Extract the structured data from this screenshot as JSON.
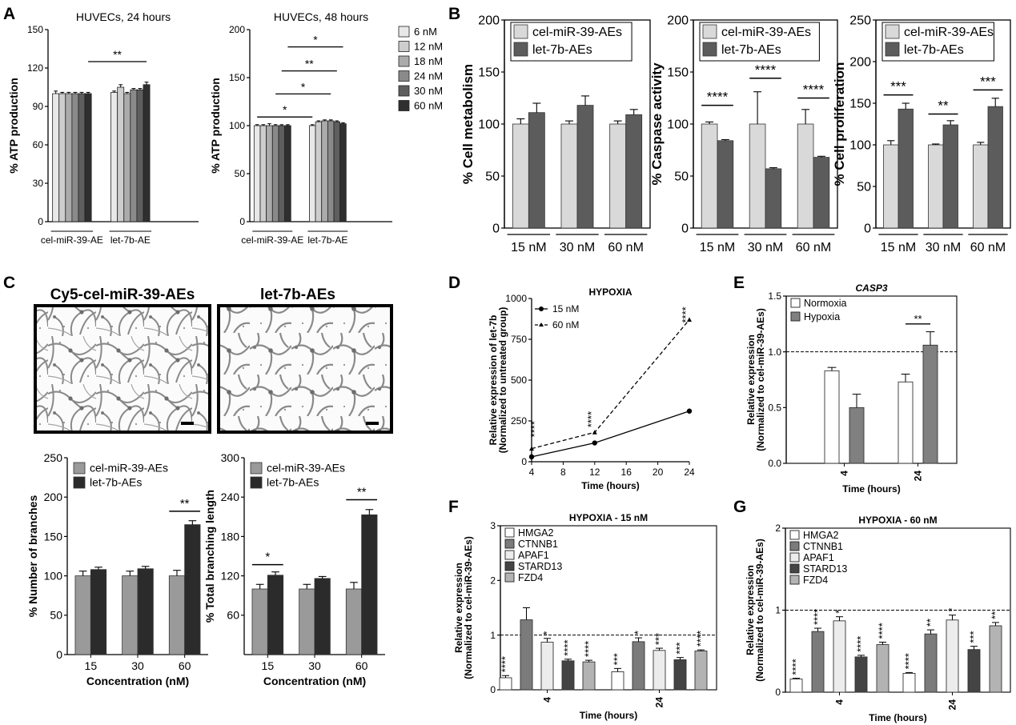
{
  "colors": {
    "grey6": [
      "#e8e8e8",
      "#cdcdcd",
      "#ababab",
      "#8a8a8a",
      "#5e5e5e",
      "#2f2f2f"
    ],
    "light": "#d9d9d9",
    "dark": "#5c5c5c",
    "black": "#2b2b2b",
    "midgrey": "#9a9a9a",
    "white": "#ffffff"
  },
  "panel_letters": [
    "A",
    "B",
    "C",
    "D",
    "E",
    "F",
    "G"
  ],
  "chart_data": [
    {
      "id": "A1",
      "type": "bar",
      "title": "HUVECs, 24 hours",
      "ylabel": "% ATP production",
      "ylim": [
        0,
        150
      ],
      "yticks": [
        0,
        30,
        60,
        90,
        120,
        150
      ],
      "groups": [
        "cel-miR-39-AE",
        "let-7b-AE"
      ],
      "series": [
        {
          "name": "6 nM",
          "values": [
            100,
            101
          ]
        },
        {
          "name": "12 nM",
          "values": [
            100,
            105
          ]
        },
        {
          "name": "18 nM",
          "values": [
            100,
            100
          ]
        },
        {
          "name": "24 nM",
          "values": [
            100,
            103
          ]
        },
        {
          "name": "30 nM",
          "values": [
            100,
            103
          ]
        },
        {
          "name": "60 nM",
          "values": [
            100,
            107
          ]
        }
      ],
      "errors": [
        [
          2,
          1
        ],
        [
          1,
          2
        ],
        [
          1,
          1
        ],
        [
          1,
          1
        ],
        [
          1,
          1
        ],
        [
          1,
          2
        ]
      ],
      "annotations": [
        {
          "text": "**",
          "y": 125,
          "from": [
            0,
            5
          ],
          "to": [
            1,
            5
          ]
        }
      ]
    },
    {
      "id": "A2",
      "type": "bar",
      "title": "HUVECs, 48 hours",
      "ylabel": "% ATP production",
      "ylim": [
        0,
        200
      ],
      "yticks": [
        0,
        50,
        100,
        150,
        200
      ],
      "groups": [
        "cel-miR-39-AE",
        "let-7b-AE"
      ],
      "series": [
        {
          "name": "6 nM",
          "values": [
            100,
            100
          ]
        },
        {
          "name": "12 nM",
          "values": [
            100,
            104
          ]
        },
        {
          "name": "18 nM",
          "values": [
            100,
            105
          ]
        },
        {
          "name": "24 nM",
          "values": [
            100,
            105
          ]
        },
        {
          "name": "30 nM",
          "values": [
            100,
            104
          ]
        },
        {
          "name": "60 nM",
          "values": [
            100,
            102
          ]
        }
      ],
      "errors": [
        [
          1,
          1
        ],
        [
          1,
          1
        ],
        [
          2,
          1
        ],
        [
          1,
          1
        ],
        [
          1,
          1
        ],
        [
          1,
          1
        ]
      ],
      "legend": [
        "6 nM",
        "12 nM",
        "18 nM",
        "24 nM",
        "30 nM",
        "60 nM"
      ],
      "annotations": [
        {
          "text": "*",
          "y": 182,
          "from": [
            0,
            5
          ],
          "to": [
            1,
            5
          ]
        },
        {
          "text": "**",
          "y": 157,
          "from": [
            0,
            4
          ],
          "to": [
            1,
            4
          ]
        },
        {
          "text": "*",
          "y": 133,
          "from": [
            0,
            3
          ],
          "to": [
            1,
            3
          ]
        },
        {
          "text": "*",
          "y": 109,
          "from": [
            0,
            0
          ],
          "to": [
            1,
            0
          ]
        }
      ]
    },
    {
      "id": "B1",
      "type": "bar",
      "ylabel": "% Cell metabolism",
      "ylim": [
        0,
        200
      ],
      "yticks": [
        0,
        50,
        100,
        150,
        200
      ],
      "categories": [
        "15 nM",
        "30 nM",
        "60 nM"
      ],
      "series": [
        {
          "name": "cel-miR-39-AEs",
          "values": [
            100,
            100,
            100
          ]
        },
        {
          "name": "let-7b-AEs",
          "values": [
            111,
            118,
            109
          ]
        }
      ],
      "errors": [
        [
          5,
          3,
          3
        ],
        [
          9,
          9,
          5
        ]
      ],
      "legend": [
        "cel-miR-39-AEs",
        "let-7b-AEs"
      ],
      "annotations": []
    },
    {
      "id": "B2",
      "type": "bar",
      "ylabel": "% Caspase activity",
      "ylim": [
        0,
        200
      ],
      "yticks": [
        0,
        50,
        100,
        150,
        200
      ],
      "categories": [
        "15 nM",
        "30 nM",
        "60 nM"
      ],
      "series": [
        {
          "name": "cel-miR-39-AEs",
          "values": [
            100,
            100,
            100
          ]
        },
        {
          "name": "let-7b-AEs",
          "values": [
            84,
            57,
            68
          ]
        }
      ],
      "errors": [
        [
          2,
          31,
          14
        ],
        [
          1,
          1,
          1
        ]
      ],
      "legend": [
        "cel-miR-39-AEs",
        "let-7b-AEs"
      ],
      "annotations": [
        {
          "text": "****",
          "y": 118,
          "cat": 0
        },
        {
          "text": "****",
          "y": 144,
          "cat": 1
        },
        {
          "text": "****",
          "y": 125,
          "cat": 2
        }
      ]
    },
    {
      "id": "B3",
      "type": "bar",
      "ylabel": "% Cell proliferation",
      "ylim": [
        0,
        250
      ],
      "yticks": [
        0,
        50,
        100,
        150,
        200,
        250
      ],
      "categories": [
        "15 nM",
        "30 nM",
        "60 nM"
      ],
      "series": [
        {
          "name": "cel-miR-39-AEs",
          "values": [
            100,
            100,
            100
          ]
        },
        {
          "name": "let-7b-AEs",
          "values": [
            143,
            124,
            146
          ]
        }
      ],
      "errors": [
        [
          5,
          1,
          3
        ],
        [
          7,
          5,
          10
        ]
      ],
      "legend": [
        "cel-miR-39-AEs",
        "let-7b-AEs"
      ],
      "annotations": [
        {
          "text": "***",
          "y": 160,
          "cat": 0
        },
        {
          "text": "**",
          "y": 137,
          "cat": 1
        },
        {
          "text": "***",
          "y": 166,
          "cat": 2
        }
      ]
    },
    {
      "id": "C1",
      "type": "bar",
      "ylabel": "% Number of branches",
      "xlabel": "Concentration (nM)",
      "ylim": [
        0,
        250
      ],
      "yticks": [
        0,
        50,
        100,
        150,
        200,
        250
      ],
      "categories": [
        "15",
        "30",
        "60"
      ],
      "series": [
        {
          "name": "cel-miR-39-AEs",
          "values": [
            100,
            100,
            100
          ]
        },
        {
          "name": "let-7b-AEs",
          "values": [
            108,
            109,
            165
          ]
        }
      ],
      "errors": [
        [
          6,
          6,
          7
        ],
        [
          3,
          3,
          5
        ]
      ],
      "legend": [
        "cel-miR-39-AEs",
        "let-7b-AEs"
      ],
      "annotations": [
        {
          "text": "**",
          "y": 182,
          "cat": 2
        }
      ]
    },
    {
      "id": "C2",
      "type": "bar",
      "ylabel": "% Total branching length",
      "xlabel": "Concentration (nM)",
      "ylim": [
        0,
        300
      ],
      "yticks": [
        60,
        120,
        180,
        240,
        300
      ],
      "categories": [
        "15",
        "30",
        "60"
      ],
      "series": [
        {
          "name": "cel-miR-39-AEs",
          "values": [
            100,
            100,
            100
          ]
        },
        {
          "name": "let-7b-AEs",
          "values": [
            121,
            116,
            213
          ]
        }
      ],
      "errors": [
        [
          7,
          7,
          10
        ],
        [
          5,
          3,
          8
        ]
      ],
      "legend": [
        "cel-miR-39-AEs",
        "let-7b-AEs"
      ],
      "annotations": [
        {
          "text": "*",
          "y": 137,
          "cat": 0
        },
        {
          "text": "**",
          "y": 236,
          "cat": 2
        }
      ]
    },
    {
      "id": "D",
      "type": "line",
      "title": "HYPOXIA",
      "xlabel": "Time (hours)",
      "ylabel": "Relative expression of let-7b",
      "ylabel2": "(Normalized to untreated group)",
      "xlim": [
        4,
        24
      ],
      "xticks": [
        4,
        8,
        12,
        16,
        20,
        24
      ],
      "ylim": [
        0,
        1000
      ],
      "yticks": [
        0,
        250,
        500,
        750,
        1000
      ],
      "series": [
        {
          "name": "15 nM",
          "x": [
            4,
            12,
            24
          ],
          "y": [
            30,
            115,
            310
          ]
        },
        {
          "name": "60 nM",
          "x": [
            4,
            12,
            24
          ],
          "y": [
            80,
            180,
            870
          ]
        }
      ],
      "annotations": [
        {
          "text": "****",
          "x": 4,
          "y": 200
        },
        {
          "text": "****",
          "x": 12,
          "y": 260
        },
        {
          "text": "****",
          "x": 24,
          "y": 900
        }
      ]
    },
    {
      "id": "E",
      "type": "bar",
      "title": "CASP3",
      "xlabel": "Time (hours)",
      "ylabel": "Relative expression",
      "ylabel2": "(Normalized to cel-miR-39-AEs)",
      "ylim": [
        0,
        1.5
      ],
      "yticks": [
        0.0,
        0.5,
        1.0,
        1.5
      ],
      "reference": 1.0,
      "categories": [
        "4",
        "24"
      ],
      "series": [
        {
          "name": "Normoxia",
          "values": [
            0.83,
            0.73
          ]
        },
        {
          "name": "Hypoxia",
          "values": [
            0.5,
            1.06
          ]
        }
      ],
      "errors": [
        [
          0.03,
          0.07
        ],
        [
          0.12,
          0.12
        ]
      ],
      "legend": [
        "Normoxia",
        "Hypoxia"
      ],
      "annotations": [
        {
          "text": "**",
          "y": 1.25,
          "cat": 1
        }
      ]
    },
    {
      "id": "F",
      "type": "bar",
      "title": "HYPOXIA - 15 nM",
      "xlabel": "Time (hours)",
      "ylabel": "Relative expression",
      "ylabel2": "(Normalized to cel-miR-39-AEs)",
      "ylim": [
        0,
        3
      ],
      "yticks": [
        0,
        1,
        2,
        3
      ],
      "reference": 1.0,
      "categories": [
        "4",
        "24"
      ],
      "series": [
        {
          "name": "HMGA2",
          "values": [
            0.22,
            0.33
          ]
        },
        {
          "name": "CTNNB1",
          "values": [
            1.28,
            0.88
          ]
        },
        {
          "name": "APAF1",
          "values": [
            0.87,
            0.72
          ]
        },
        {
          "name": "STARD13",
          "values": [
            0.53,
            0.55
          ]
        },
        {
          "name": "FZD4",
          "values": [
            0.51,
            0.71
          ]
        }
      ],
      "errors": [
        [
          0.04,
          0.06
        ],
        [
          0.22,
          0.07
        ],
        [
          0.07,
          0.04
        ],
        [
          0.03,
          0.04
        ],
        [
          0.03,
          0.02
        ]
      ],
      "legend": [
        "HMGA2",
        "CTNNB1",
        "APAF1",
        "STARD13",
        "FZD4"
      ],
      "stars": [
        [
          "****",
          "",
          "*",
          "****",
          "****"
        ],
        [
          "***",
          "*",
          "***",
          "***",
          "****"
        ]
      ]
    },
    {
      "id": "G",
      "type": "bar",
      "title": "HYPOXIA - 60 nM",
      "xlabel": "Time (hours)",
      "ylabel": "Relative expression",
      "ylabel2": "(Normalized to cel-miR-39-AEs)",
      "ylim": [
        0,
        2
      ],
      "yticks": [
        0,
        1,
        2
      ],
      "reference": 1.0,
      "categories": [
        "4",
        "24"
      ],
      "series": [
        {
          "name": "HMGA2",
          "values": [
            0.16,
            0.23
          ]
        },
        {
          "name": "CTNNB1",
          "values": [
            0.74,
            0.71
          ]
        },
        {
          "name": "APAF1",
          "values": [
            0.87,
            0.88
          ]
        },
        {
          "name": "STARD13",
          "values": [
            0.43,
            0.52
          ]
        },
        {
          "name": "FZD4",
          "values": [
            0.58,
            0.81
          ]
        }
      ],
      "errors": [
        [
          0.01,
          0.01
        ],
        [
          0.04,
          0.05
        ],
        [
          0.05,
          0.06
        ],
        [
          0.02,
          0.04
        ],
        [
          0.03,
          0.04
        ]
      ],
      "legend": [
        "HMGA2",
        "CTNNB1",
        "APAF1",
        "STARD13",
        "FZD4"
      ],
      "stars": [
        [
          "****",
          "****",
          "*",
          "****",
          "****"
        ],
        [
          "****",
          "**",
          "*",
          "***",
          "**"
        ]
      ]
    }
  ],
  "images": {
    "left_title": "Cy5-cel-miR-39-AEs",
    "right_title": "let-7b-AEs"
  }
}
